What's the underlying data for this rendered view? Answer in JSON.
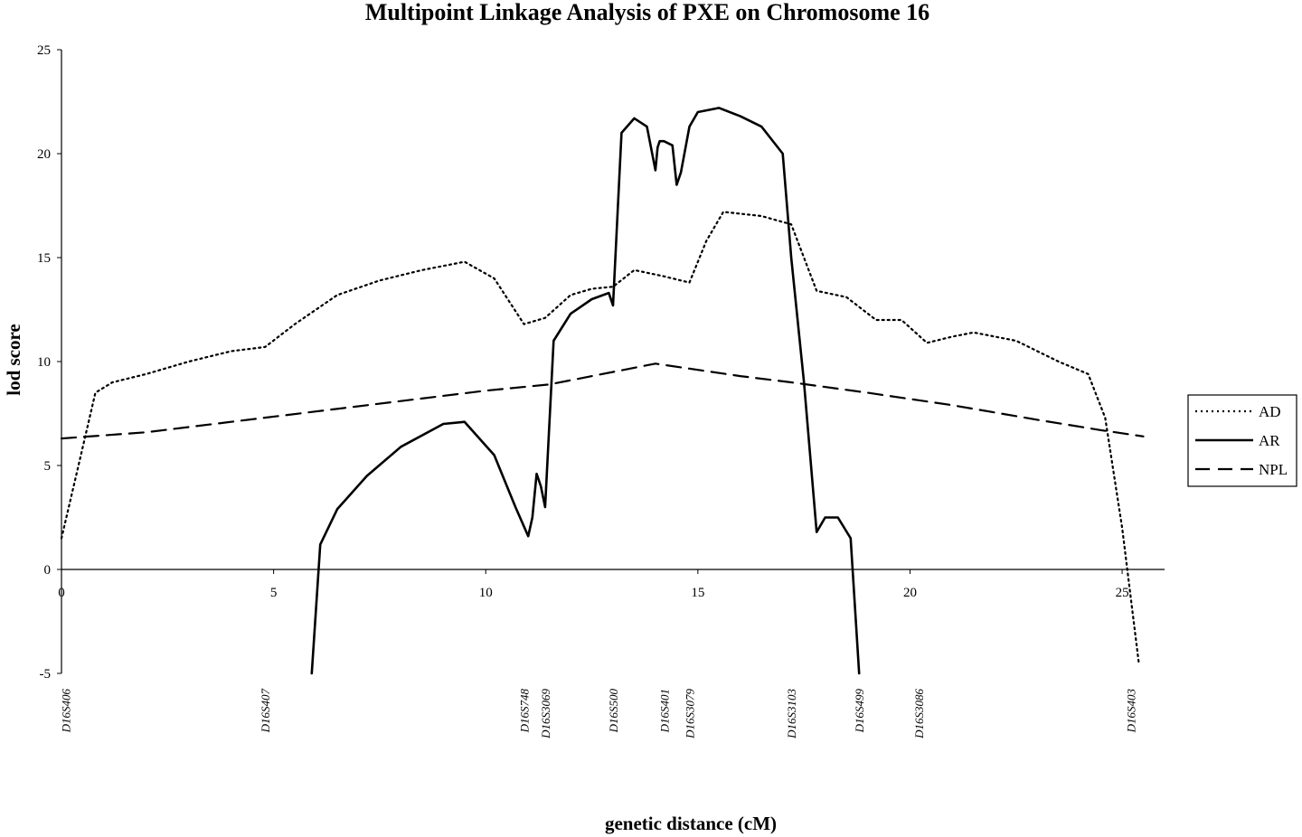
{
  "chart_data": {
    "type": "line",
    "title": "Multipoint Linkage Analysis of PXE on Chromosome 16",
    "xlabel": "genetic distance (cM)",
    "ylabel": "lod score",
    "xlim": [
      0,
      26
    ],
    "ylim": [
      -5,
      25
    ],
    "xticks": [
      "0",
      "5",
      "10",
      "15",
      "20",
      "25"
    ],
    "yticks": [
      "-5",
      "0",
      "5",
      "10",
      "15",
      "20",
      "25"
    ],
    "grid": false,
    "legend_position": "right",
    "markers": [
      {
        "label": "D16S406",
        "x": 0.1
      },
      {
        "label": "D16S407",
        "x": 4.8
      },
      {
        "label": "D16S748",
        "x": 10.9
      },
      {
        "label": "D16S3069",
        "x": 11.4
      },
      {
        "label": "D16S500",
        "x": 13.0
      },
      {
        "label": "D16S401",
        "x": 14.2
      },
      {
        "label": "D16S3079",
        "x": 14.8
      },
      {
        "label": "D16S3103",
        "x": 17.2
      },
      {
        "label": "D16S499",
        "x": 18.8
      },
      {
        "label": "D16S3086",
        "x": 20.2
      },
      {
        "label": "D16S403",
        "x": 25.2
      }
    ],
    "series": [
      {
        "name": "AD",
        "style": "dotted",
        "x": [
          0,
          0.4,
          0.8,
          1.2,
          2,
          3,
          4,
          4.8,
          5.5,
          6.5,
          7.5,
          8.5,
          9.5,
          10.2,
          10.9,
          11.4,
          12,
          12.5,
          13,
          13.5,
          14.2,
          14.8,
          15.2,
          15.6,
          16.5,
          17.2,
          17.8,
          18.5,
          19.2,
          19.8,
          20.4,
          21,
          21.5,
          22.5,
          23.5,
          24.2,
          24.6,
          25,
          25.4
        ],
        "y": [
          1.5,
          5,
          8.5,
          9,
          9.4,
          10,
          10.5,
          10.7,
          11.8,
          13.2,
          13.9,
          14.4,
          14.8,
          14,
          11.8,
          12.1,
          13.2,
          13.5,
          13.6,
          14.4,
          14.1,
          13.8,
          15.8,
          17.2,
          17,
          16.6,
          13.4,
          13.1,
          12,
          12,
          10.9,
          11.2,
          11.4,
          11,
          10,
          9.4,
          7.3,
          2,
          -4.6
        ]
      },
      {
        "name": "AR",
        "style": "solid",
        "x": [
          5.9,
          6.1,
          6.5,
          7.2,
          8,
          9,
          9.5,
          10.2,
          10.7,
          11,
          11.1,
          11.2,
          11.3,
          11.4,
          11.6,
          12,
          12.5,
          12.9,
          13,
          13.2,
          13.5,
          13.8,
          14,
          14.05,
          14.1,
          14.2,
          14.4,
          14.5,
          14.6,
          14.8,
          15,
          15.5,
          16,
          16.5,
          17,
          17.2,
          17.5,
          17.8,
          18,
          18.3,
          18.6,
          18.8
        ],
        "y": [
          -5,
          1.2,
          2.9,
          4.5,
          5.9,
          7,
          7.1,
          5.5,
          3,
          1.6,
          2.5,
          4.6,
          4,
          3,
          11,
          12.3,
          13,
          13.3,
          12.7,
          21,
          21.7,
          21.3,
          19.2,
          20.3,
          20.6,
          20.6,
          20.4,
          18.5,
          19.1,
          21.3,
          22,
          22.2,
          21.8,
          21.3,
          20,
          15,
          9,
          1.8,
          2.5,
          2.5,
          1.5,
          -5
        ]
      },
      {
        "name": "NPL",
        "style": "dashed",
        "x": [
          0,
          2,
          4,
          6,
          8,
          10,
          11.5,
          13,
          14,
          15,
          16,
          17.2,
          19,
          21,
          23,
          24.5,
          25.5
        ],
        "y": [
          6.3,
          6.6,
          7.1,
          7.6,
          8.1,
          8.6,
          8.9,
          9.5,
          9.9,
          9.6,
          9.3,
          9.0,
          8.5,
          7.9,
          7.2,
          6.7,
          6.4
        ]
      }
    ]
  }
}
